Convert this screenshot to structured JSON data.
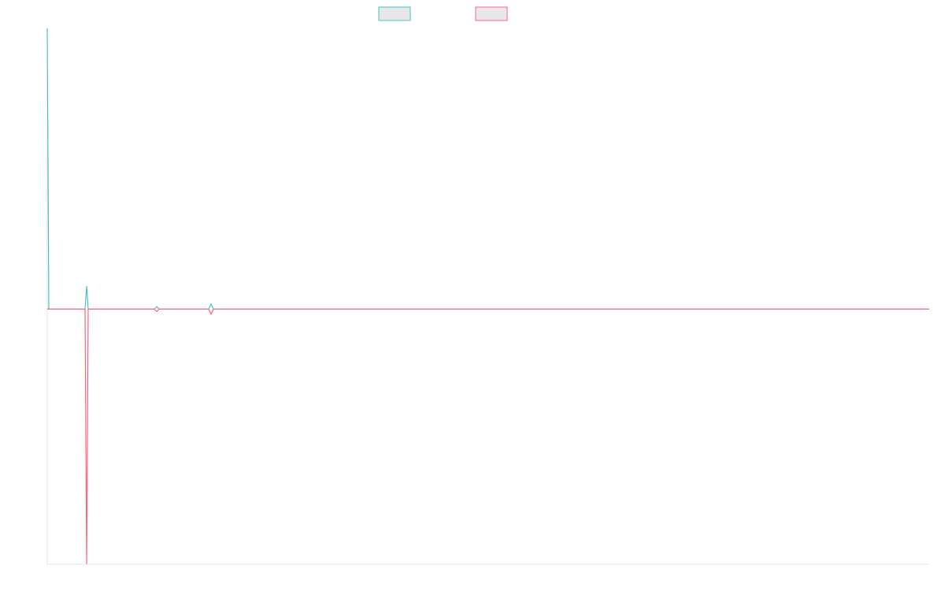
{
  "chart_data": {
    "type": "line",
    "x": [
      0,
      2,
      48,
      50,
      52,
      136,
      139,
      142,
      205,
      208,
      211,
      259,
      301,
      1120
    ],
    "series": [
      {
        "color": "#4bc0c0",
        "values": [
          110,
          0,
          0,
          9,
          0,
          0,
          1,
          0,
          0,
          2,
          0,
          0,
          0,
          0
        ]
      },
      {
        "color": "#ff6384",
        "values": [
          0,
          0,
          0,
          -100,
          0,
          0,
          -1,
          0,
          0,
          -2,
          0,
          0,
          0,
          0
        ]
      }
    ],
    "xlim": [
      0,
      1120
    ],
    "ylim": [
      -100,
      110
    ]
  }
}
